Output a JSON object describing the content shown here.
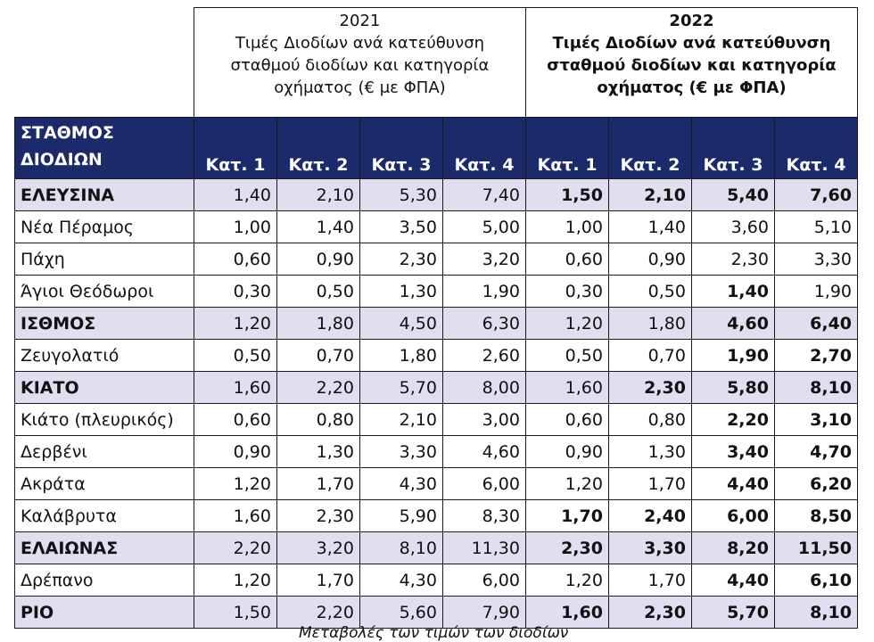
{
  "header": {
    "year_2021": "2021",
    "desc_2021": "Τιμές Διοδίων ανά κατεύθυνση σταθμού διοδίων και κατηγορία οχήματος (€ με ΦΠΑ)",
    "year_2022": "2022",
    "desc_2022": "Τιμές Διοδίων ανά κατεύθυνση σταθμού διοδίων και κατηγορία οχήματος (€ με ΦΠΑ)"
  },
  "columns": {
    "station_line1": "ΣΤΑΘΜΟΣ",
    "station_line2": "ΔΙΟΔΙΩΝ",
    "categories": [
      "Κατ. 1",
      "Κατ. 2",
      "Κατ. 3",
      "Κατ. 4",
      "Κατ. 1",
      "Κατ. 2",
      "Κατ. 3",
      "Κατ. 4"
    ]
  },
  "rows": [
    {
      "name": "ΕΛΕΥΣΙΝΑ",
      "main": true,
      "values": [
        "1,40",
        "2,10",
        "5,30",
        "7,40",
        "1,50",
        "2,10",
        "5,40",
        "7,60"
      ]
    },
    {
      "name": "Νέα Πέραμος",
      "main": false,
      "values": [
        "1,00",
        "1,40",
        "3,50",
        "5,00",
        "1,00",
        "1,40",
        "3,60",
        "5,10"
      ]
    },
    {
      "name": "Πάχη",
      "main": false,
      "values": [
        "0,60",
        "0,90",
        "2,30",
        "3,20",
        "0,60",
        "0,90",
        "2,30",
        "3,30"
      ]
    },
    {
      "name": "Άγιοι Θεόδωροι",
      "main": false,
      "values": [
        "0,30",
        "0,50",
        "1,30",
        "1,90",
        "0,30",
        "0,50",
        "1,40",
        "1,90"
      ]
    },
    {
      "name": "ΙΣΘΜΟΣ",
      "main": true,
      "values": [
        "1,20",
        "1,80",
        "4,50",
        "6,30",
        "1,20",
        "1,80",
        "4,60",
        "6,40"
      ]
    },
    {
      "name": "Ζευγολατιό",
      "main": false,
      "values": [
        "0,50",
        "0,70",
        "1,80",
        "2,60",
        "0,50",
        "0,70",
        "1,90",
        "2,70"
      ]
    },
    {
      "name": "ΚΙΑΤΟ",
      "main": true,
      "values": [
        "1,60",
        "2,20",
        "5,70",
        "8,00",
        "1,60",
        "2,30",
        "5,80",
        "8,10"
      ]
    },
    {
      "name": "Κιάτο (πλευρικός)",
      "main": false,
      "values": [
        "0,60",
        "0,80",
        "2,10",
        "3,00",
        "0,60",
        "0,80",
        "2,20",
        "3,10"
      ]
    },
    {
      "name": "Δερβένι",
      "main": false,
      "values": [
        "0,90",
        "1,30",
        "3,30",
        "4,60",
        "0,90",
        "1,30",
        "3,40",
        "4,70"
      ]
    },
    {
      "name": "Ακράτα",
      "main": false,
      "values": [
        "1,20",
        "1,70",
        "4,30",
        "6,00",
        "1,20",
        "1,70",
        "4,40",
        "6,20"
      ]
    },
    {
      "name": "Καλάβρυτα",
      "main": false,
      "values": [
        "1,60",
        "2,30",
        "5,90",
        "8,30",
        "1,70",
        "2,40",
        "6,00",
        "8,50"
      ]
    },
    {
      "name": "ΕΛΑΙΩΝΑΣ",
      "main": true,
      "values": [
        "2,20",
        "3,20",
        "8,10",
        "11,30",
        "2,30",
        "3,30",
        "8,20",
        "11,50"
      ]
    },
    {
      "name": "Δρέπανο",
      "main": false,
      "values": [
        "1,20",
        "1,70",
        "4,30",
        "6,00",
        "1,20",
        "1,70",
        "4,40",
        "6,10"
      ]
    },
    {
      "name": "ΡΙΟ",
      "main": true,
      "values": [
        "1,50",
        "2,20",
        "5,60",
        "7,90",
        "1,60",
        "2,30",
        "5,70",
        "8,10"
      ]
    }
  ],
  "bold_2022_cells": [
    [
      0,
      1,
      2,
      3
    ],
    [],
    [],
    [
      2
    ],
    [
      2,
      3
    ],
    [
      2,
      3
    ],
    [
      1,
      2,
      3
    ],
    [
      2,
      3
    ],
    [
      2,
      3
    ],
    [
      2,
      3
    ],
    [
      0,
      1,
      2,
      3
    ],
    [
      0,
      1,
      2,
      3
    ],
    [
      2,
      3
    ],
    [
      0,
      1,
      2,
      3
    ]
  ],
  "caption": "Μεταβολές των τιμών των διοδίων"
}
